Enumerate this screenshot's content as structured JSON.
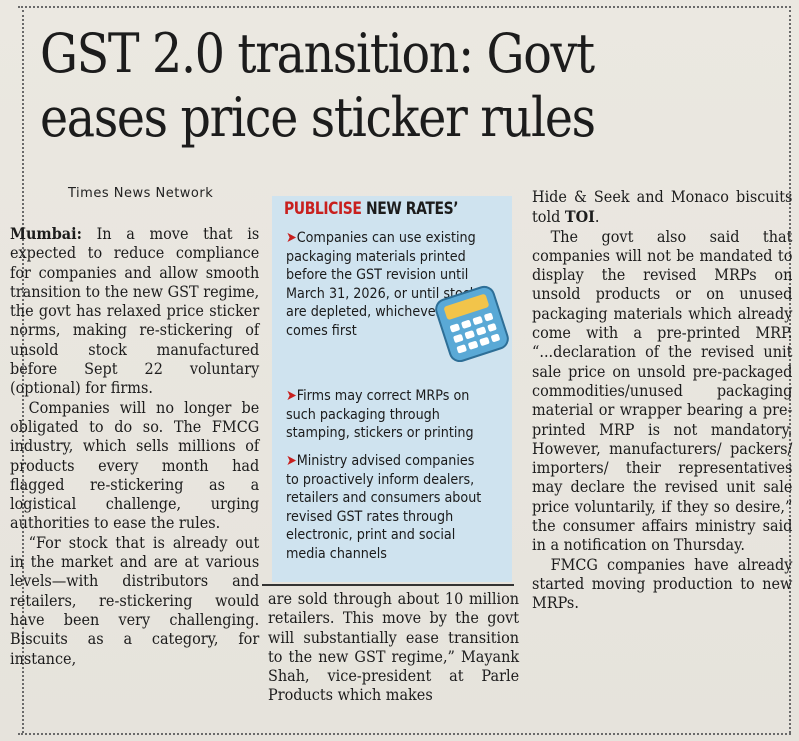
{
  "headline": {
    "line1": "GST 2.0 transition: Govt",
    "line2": "eases price sticker rules"
  },
  "byline": "Times News Network",
  "col1": {
    "dateline": "Mumbai:",
    "p1": "In a move that is expected to reduce compliance for companies and allow smooth transition to the new GST regime, the govt has relaxed price sticker norms, making re-stickering of unsold stock manufactured before Sept 22 voluntary (optional) for firms.",
    "p2": "Companies will no longer be obligated to do so. The FMCG industry, which sells millions of products every month had flagged re-stickering as a logistical challenge, urging authorities to ease the rules.",
    "p3": "“For stock that is already out in the market and are at various levels—with distributors and retailers, re-stickering would have been very challenging. Biscuits as a category, for instance,"
  },
  "box": {
    "title_red": "PUBLICISE",
    "title_black": "NEW RATES’",
    "arrow": "➤",
    "item1": "Companies can use existing packaging materials printed before the GST revision until March 31, 2026, or until stocks are depleted, whichever comes first",
    "item2": "Firms may correct MRPs on such packaging through stamping, stickers or printing",
    "item3": "Ministry advised companies to proactively inform dealers, retailers and consumers about revised GST rates through electronic, print and social media channels",
    "icon": "calculator-icon"
  },
  "col2b": {
    "text": "are sold through about 10 million retailers. This move by the govt will substantially ease transition to the new GST regime,” Mayank Shah, vice-president at Parle Products which makes"
  },
  "col3": {
    "p1_before": "Hide & Seek and Monaco biscuits told ",
    "p1_toi": "TOI",
    "p1_after": ".",
    "p2": "The govt also said that companies will not be mandated to display the revised MRPs on unsold products or on unused packaging materials which already come with a pre-printed MRP. “...declaration of the revised unit sale price on unsold pre-packaged commodities/unused packaging material or wrapper bearing a pre-printed MRP is not mandatory. However, manufacturers/ packers/ importers/ their representatives may declare the revised unit sale price voluntarily, if they so desire,” the consumer affairs ministry said in a notification on Thursday.",
    "p3": "FMCG companies have already started moving production to new MRPs."
  },
  "colors": {
    "paper": "#e9e6df",
    "box_bg": "#cfe3ef",
    "accent_red": "#c8201e",
    "calc_body": "#5aa9d6",
    "calc_screen": "#f2c44a"
  }
}
